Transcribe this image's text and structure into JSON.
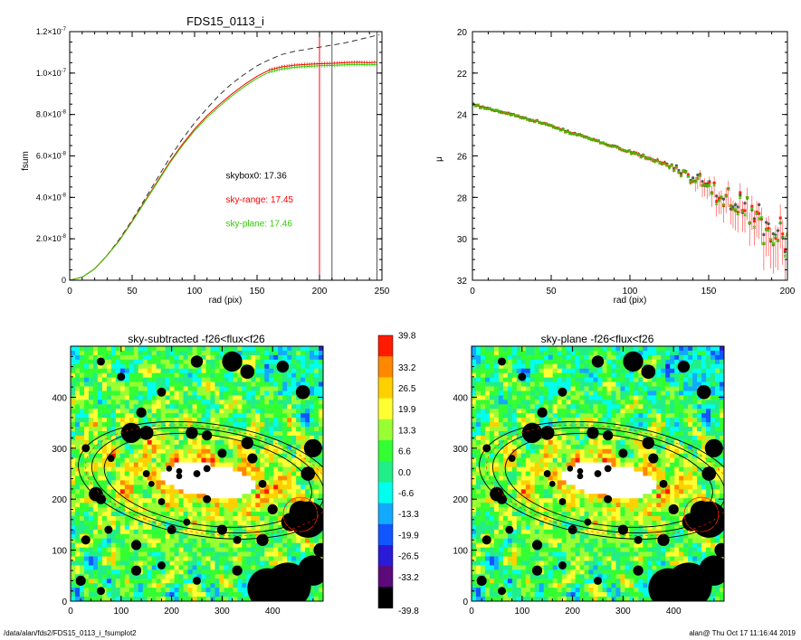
{
  "chart_data": [
    {
      "type": "line",
      "title": "FDS15_0113_i",
      "xlabel": "rad (pix)",
      "ylabel": "fsum",
      "xlim": [
        0,
        250
      ],
      "ylim": [
        0,
        1.2e-07
      ],
      "x_ticks": [
        "0",
        "50",
        "100",
        "150",
        "200",
        "250"
      ],
      "y_ticks": [
        {
          "mant": "0",
          "exp": ""
        },
        {
          "mant": "2.0×10",
          "exp": "-8"
        },
        {
          "mant": "4.0×10",
          "exp": "-8"
        },
        {
          "mant": "6.0×10",
          "exp": "-8"
        },
        {
          "mant": "8.0×10",
          "exp": "-8"
        },
        {
          "mant": "1.0×10",
          "exp": "-7"
        },
        {
          "mant": "1.2×10",
          "exp": "-7"
        }
      ],
      "series": [
        {
          "color": "#333333",
          "dashed": true,
          "x": [
            0,
            10,
            20,
            30,
            40,
            50,
            60,
            70,
            80,
            90,
            100,
            110,
            120,
            130,
            140,
            150,
            160,
            170,
            180,
            200,
            220,
            248
          ],
          "y": [
            0,
            1.5e-09,
            5.5e-09,
            1.2e-08,
            2e-08,
            2.9e-08,
            3.9e-08,
            4.9e-08,
            5.9e-08,
            6.8e-08,
            7.6e-08,
            8.3e-08,
            8.95e-08,
            9.5e-08,
            9.95e-08,
            1.035e-07,
            1.065e-07,
            1.09e-07,
            1.105e-07,
            1.125e-07,
            1.145e-07,
            1.185e-07
          ]
        },
        {
          "color": "#ff0000",
          "dashed": false,
          "x": [
            0,
            10,
            20,
            30,
            40,
            50,
            60,
            70,
            80,
            90,
            100,
            110,
            120,
            130,
            140,
            150,
            160,
            170,
            180,
            190,
            200,
            210,
            220,
            230,
            240,
            246
          ],
          "y": [
            0,
            1.5e-09,
            5.5e-09,
            1.2e-08,
            1.95e-08,
            2.85e-08,
            3.8e-08,
            4.75e-08,
            5.7e-08,
            6.55e-08,
            7.3e-08,
            7.95e-08,
            8.5e-08,
            9e-08,
            9.45e-08,
            9.85e-08,
            1.015e-07,
            1.03e-07,
            1.038e-07,
            1.042e-07,
            1.045e-07,
            1.047e-07,
            1.05e-07,
            1.052e-07,
            1.05e-07,
            1.052e-07
          ]
        },
        {
          "color": "#33cc00",
          "dashed": false,
          "x": [
            0,
            10,
            20,
            30,
            40,
            50,
            60,
            70,
            80,
            90,
            100,
            110,
            120,
            130,
            140,
            150,
            160,
            170,
            180,
            190,
            200,
            210,
            220,
            230,
            240,
            246
          ],
          "y": [
            0,
            1.5e-09,
            5.4e-09,
            1.19e-08,
            1.93e-08,
            2.82e-08,
            3.76e-08,
            4.7e-08,
            5.64e-08,
            6.48e-08,
            7.22e-08,
            7.86e-08,
            8.4e-08,
            8.9e-08,
            9.35e-08,
            9.75e-08,
            1.005e-07,
            1.02e-07,
            1.028e-07,
            1.032e-07,
            1.035e-07,
            1.037e-07,
            1.04e-07,
            1.042e-07,
            1.04e-07,
            1.042e-07
          ]
        }
      ],
      "vlines": [
        {
          "x": 200,
          "color": "#ff0000"
        },
        {
          "x": 210,
          "color": "#555555"
        },
        {
          "x": 246,
          "color": "#555555"
        }
      ],
      "annotations": [
        {
          "text": "skybox0: 17.36",
          "color": "#000000",
          "x": 125,
          "y": 4.9e-08
        },
        {
          "text": "sky-range: 17.45",
          "color": "#ff0000",
          "x": 125,
          "y": 3.75e-08
        },
        {
          "text": "sky-plane: 17.46",
          "color": "#33cc00",
          "x": 125,
          "y": 2.6e-08
        }
      ]
    },
    {
      "type": "scatter",
      "xlabel": "rad (pix)",
      "ylabel": "μ",
      "xlim": [
        0,
        200
      ],
      "ylim": [
        32,
        20
      ],
      "x_ticks": [
        "0",
        "50",
        "100",
        "150",
        "200"
      ],
      "y_ticks": [
        "20",
        "22",
        "24",
        "26",
        "28",
        "30",
        "32"
      ],
      "trend": {
        "x": [
          0,
          10,
          20,
          40,
          60,
          80,
          100,
          120,
          130,
          140,
          150,
          160,
          170,
          180,
          190,
          200
        ],
        "y": [
          23.5,
          23.7,
          23.9,
          24.3,
          24.8,
          25.3,
          25.8,
          26.3,
          26.6,
          27.0,
          27.4,
          27.9,
          28.4,
          28.9,
          29.4,
          30.0
        ]
      },
      "series": [
        {
          "color": "#555555",
          "marker": "circle"
        },
        {
          "color": "#ff0000",
          "marker": "square"
        },
        {
          "color": "#33cc00",
          "marker": "cross"
        }
      ]
    },
    {
      "type": "heatmap",
      "title": "sky-subtracted -f26<flux<f26",
      "xlim": [
        0,
        500
      ],
      "ylim": [
        0,
        500
      ],
      "x_ticks": [
        "0",
        "100",
        "200",
        "300",
        "400"
      ],
      "y_ticks": [
        "0",
        "100",
        "200",
        "300",
        "400"
      ]
    },
    {
      "type": "heatmap",
      "title": "sky-plane -f26<flux<f26",
      "xlim": [
        0,
        500
      ],
      "ylim": [
        0,
        500
      ],
      "x_ticks": [
        "0",
        "100",
        "200",
        "300",
        "400"
      ],
      "y_ticks": [
        "0",
        "100",
        "200",
        "300",
        "400"
      ]
    }
  ],
  "colorbar": {
    "labels": [
      "39.8",
      "33.2",
      "26.5",
      "19.9",
      "13.3",
      "6.6",
      "0.0",
      "-6.6",
      "-13.3",
      "-19.9",
      "-26.5",
      "-33.2",
      "-39.8"
    ],
    "colors": [
      "#ff1a00",
      "#ff8800",
      "#ffd000",
      "#ffff33",
      "#99ff33",
      "#33ff33",
      "#22ee88",
      "#00ffee",
      "#11aaff",
      "#1155ff",
      "#2a1bd6",
      "#5c0a7a",
      "#000000"
    ]
  },
  "footer": {
    "path": "/data/alan/fds2/FDS15_0113_i_fsumplot2",
    "stamp": "alan@  Thu Oct 17 11:16:44 2019"
  }
}
